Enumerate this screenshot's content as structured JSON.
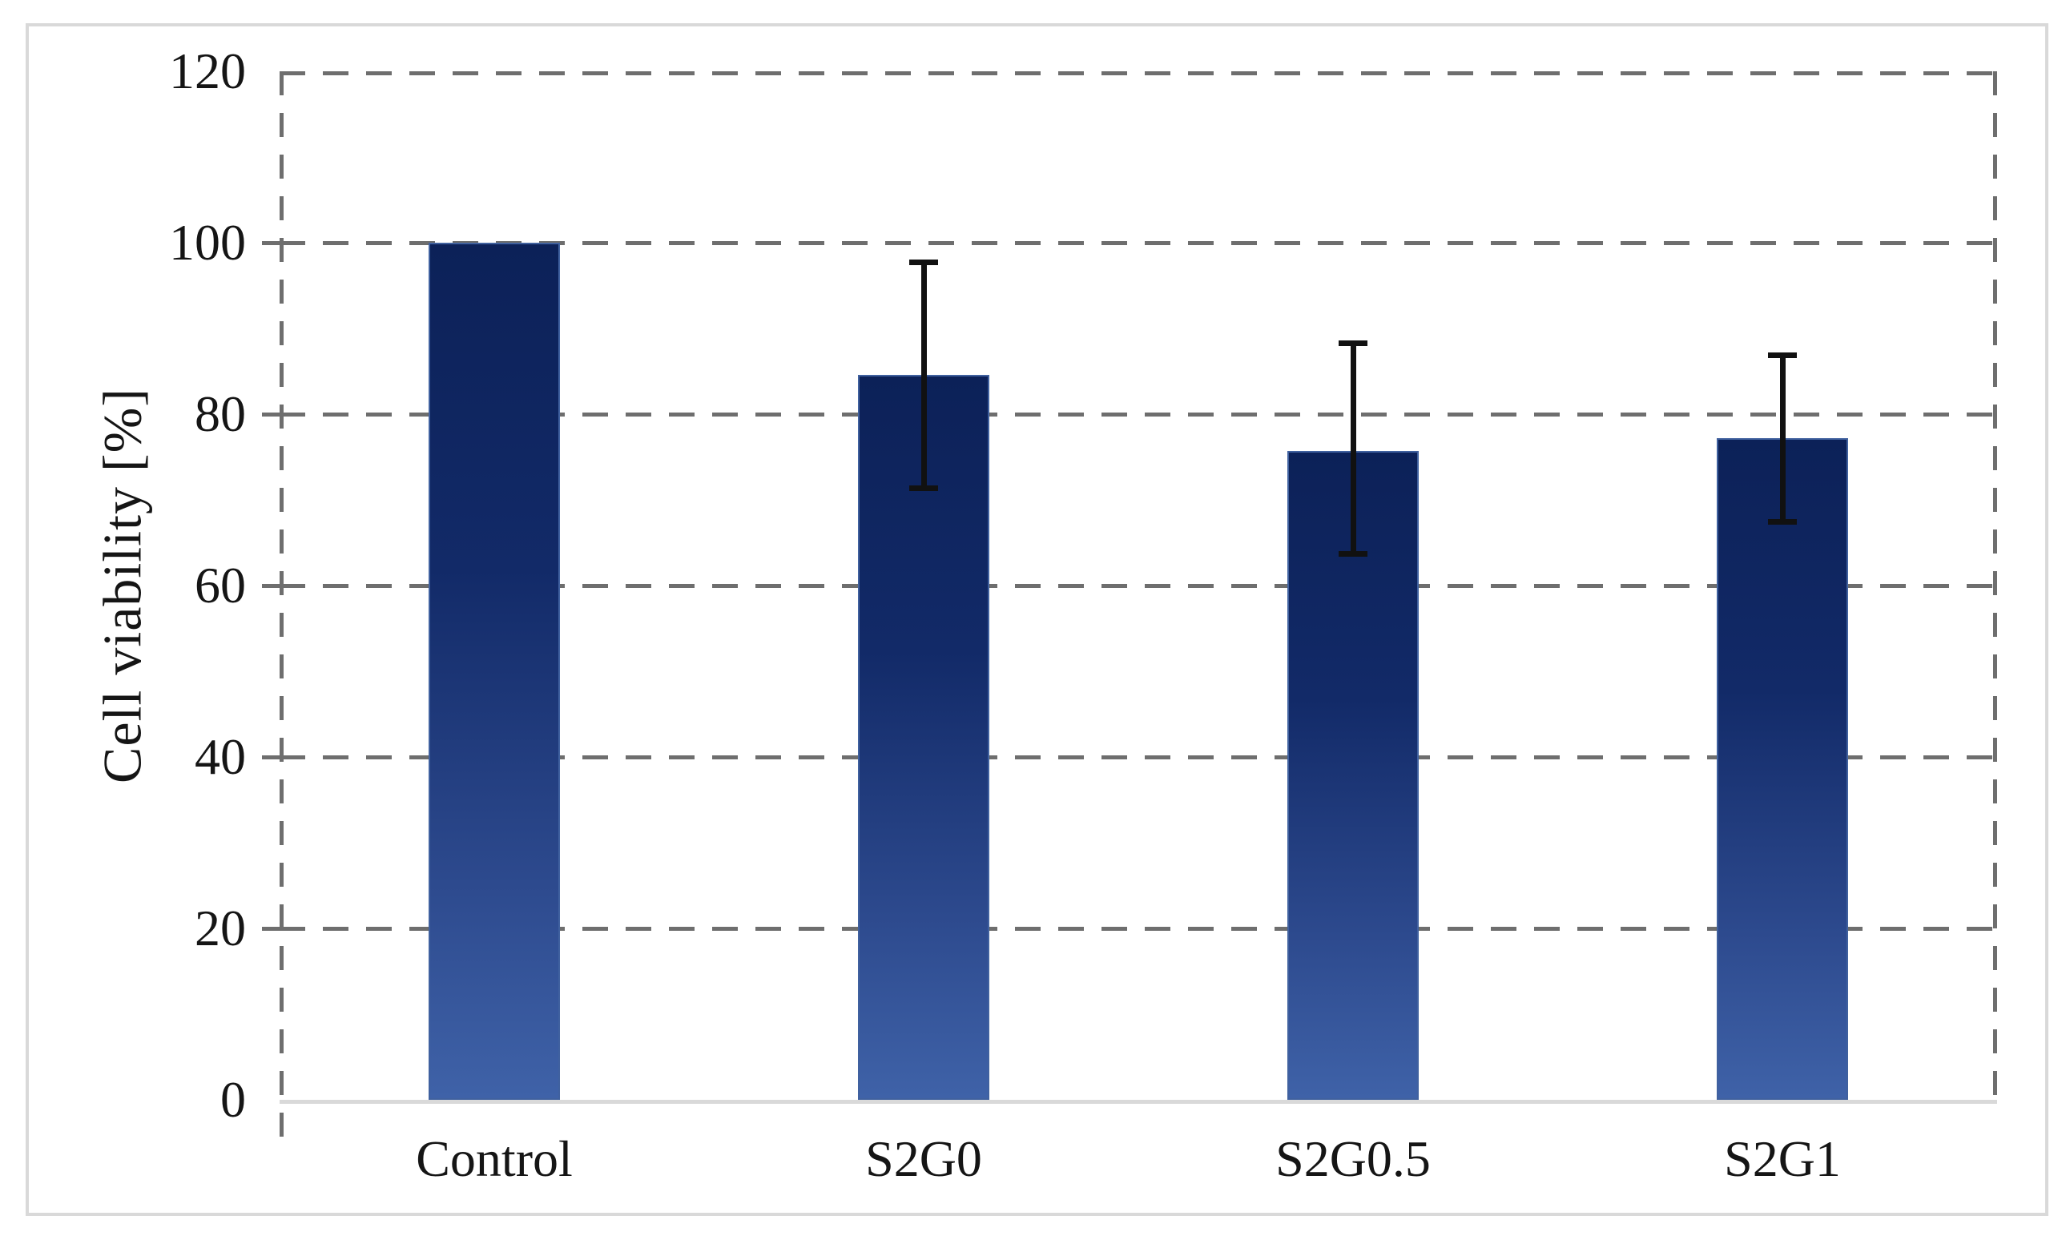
{
  "figure": {
    "background": "#ffffff",
    "border_color": "#d9d9d9"
  },
  "chart_data": {
    "type": "bar",
    "title": "",
    "xlabel": "",
    "ylabel": "Cell viability [%]",
    "categories": [
      "Control",
      "S2G0",
      "S2G0.5",
      "S2G1"
    ],
    "values": [
      100,
      84.6,
      75.7,
      77.2
    ],
    "error_bars": [
      null,
      {
        "high": 97.8,
        "low": 71.3
      },
      {
        "high": 88.3,
        "low": 63.6
      },
      {
        "high": 86.9,
        "low": 67.4
      }
    ],
    "ylim": [
      0,
      120
    ],
    "yticks": [
      0,
      20,
      40,
      60,
      80,
      100,
      120
    ],
    "ytick_step": 20,
    "grid": "dashed horizontal gridlines at each ytick",
    "legend": "none",
    "bar_color_top": "#0c2158",
    "bar_color_bottom": "#3f62a8",
    "gridline_color": "#6e6e6e",
    "axis_line_color": "#d9d9d9",
    "error_bar_color": "#111111",
    "text_color": "#151515"
  }
}
